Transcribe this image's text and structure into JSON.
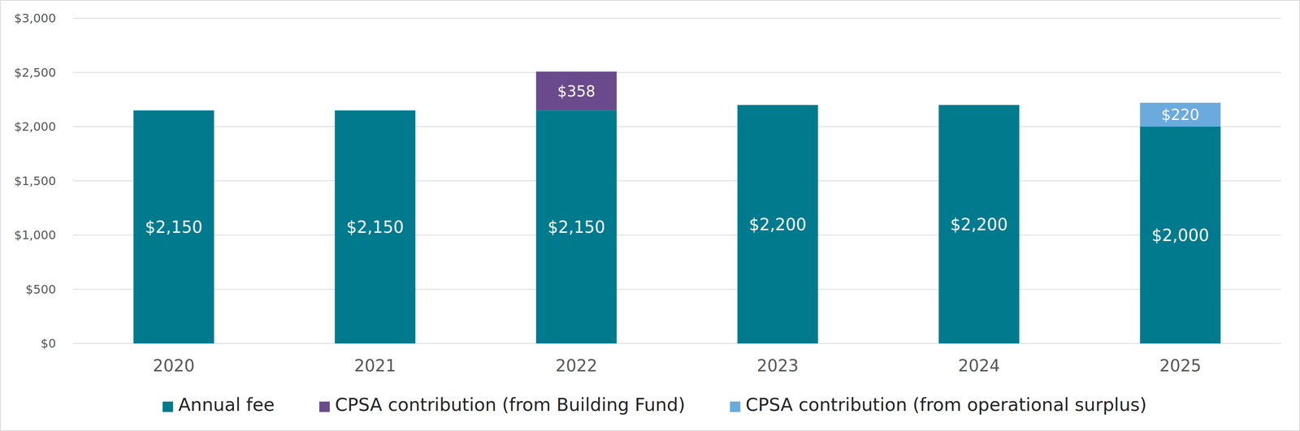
{
  "chart_data": {
    "type": "bar",
    "stacked": true,
    "grid": true,
    "legend": "bottom",
    "data_labels": true,
    "categories": [
      "2020",
      "2021",
      "2022",
      "2023",
      "2024",
      "2025"
    ],
    "ylim": [
      0,
      3000
    ],
    "yticks": [
      {
        "value": 0,
        "label": "$0"
      },
      {
        "value": 500,
        "label": "$500"
      },
      {
        "value": 1000,
        "label": "$1,000"
      },
      {
        "value": 1500,
        "label": "$1,500"
      },
      {
        "value": 2000,
        "label": "$2,000"
      },
      {
        "value": 2500,
        "label": "$2,500"
      },
      {
        "value": 3000,
        "label": "$3,000"
      }
    ],
    "series": [
      {
        "name": "Annual fee",
        "color": "#017a8e",
        "values": [
          2150,
          2150,
          2150,
          2200,
          2200,
          2000
        ],
        "value_labels": [
          "$2,150",
          "$2,150",
          "$2,150",
          "$2,200",
          "$2,200",
          "$2,000"
        ]
      },
      {
        "name": "CPSA contribution (from Building Fund)",
        "color": "#6a4a8c",
        "values": [
          null,
          null,
          358,
          null,
          null,
          null
        ],
        "value_labels": [
          null,
          null,
          "$358",
          null,
          null,
          null
        ]
      },
      {
        "name": "CPSA contribution (from operational surplus)",
        "color": "#6aaadd",
        "values": [
          null,
          null,
          null,
          null,
          null,
          220
        ],
        "value_labels": [
          null,
          null,
          null,
          null,
          null,
          "$220"
        ]
      }
    ]
  }
}
